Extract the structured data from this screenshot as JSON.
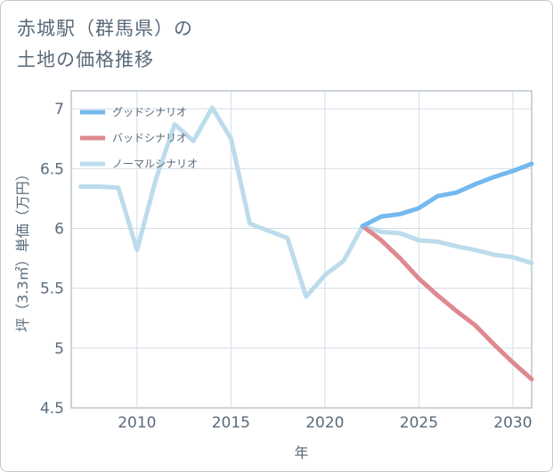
{
  "title": {
    "line1": "赤城駅（群馬県）の",
    "line2": "土地の価格推移"
  },
  "chart_data": {
    "type": "line",
    "title": "赤城駅（群馬県）の土地の価格推移",
    "xlabel": "年",
    "ylabel": "坪（3.3㎡）単価（万円）",
    "xlim": [
      2006.5,
      2031
    ],
    "ylim": [
      4.5,
      7.15
    ],
    "xticks": [
      2010,
      2015,
      2020,
      2025,
      2030
    ],
    "yticks": [
      4.5,
      5,
      5.5,
      6,
      6.5,
      7
    ],
    "ytick_labels": [
      "4.5",
      "5",
      "5.5",
      "6",
      "6.5",
      "7"
    ],
    "grid": true,
    "legend_position": "top-left",
    "series": [
      {
        "name": "グッドシナリオ",
        "color": "#74b9ee",
        "x": [
          2022,
          2023,
          2024,
          2025,
          2026,
          2027,
          2028,
          2029,
          2030,
          2031
        ],
        "y": [
          6.02,
          6.1,
          6.12,
          6.17,
          6.27,
          6.3,
          6.37,
          6.43,
          6.48,
          6.54
        ]
      },
      {
        "name": "バッドシナリオ",
        "color": "#de8990",
        "x": [
          2022,
          2023,
          2024,
          2025,
          2026,
          2027,
          2028,
          2029,
          2030,
          2031
        ],
        "y": [
          6.02,
          5.9,
          5.75,
          5.58,
          5.44,
          5.31,
          5.19,
          5.03,
          4.88,
          4.74
        ]
      },
      {
        "name": "ノーマルシナリオ",
        "color": "#bcdcec",
        "x": [
          2007,
          2008,
          2009,
          2010,
          2011,
          2012,
          2013,
          2014,
          2015,
          2016,
          2017,
          2018,
          2019,
          2020,
          2021,
          2022,
          2023,
          2024,
          2025,
          2026,
          2027,
          2028,
          2029,
          2030,
          2031
        ],
        "y": [
          6.35,
          6.35,
          6.34,
          5.82,
          6.41,
          6.87,
          6.73,
          7.01,
          6.75,
          6.04,
          5.98,
          5.92,
          5.43,
          5.61,
          5.73,
          6.02,
          5.97,
          5.96,
          5.9,
          5.89,
          5.85,
          5.82,
          5.78,
          5.76,
          5.71
        ]
      }
    ]
  }
}
